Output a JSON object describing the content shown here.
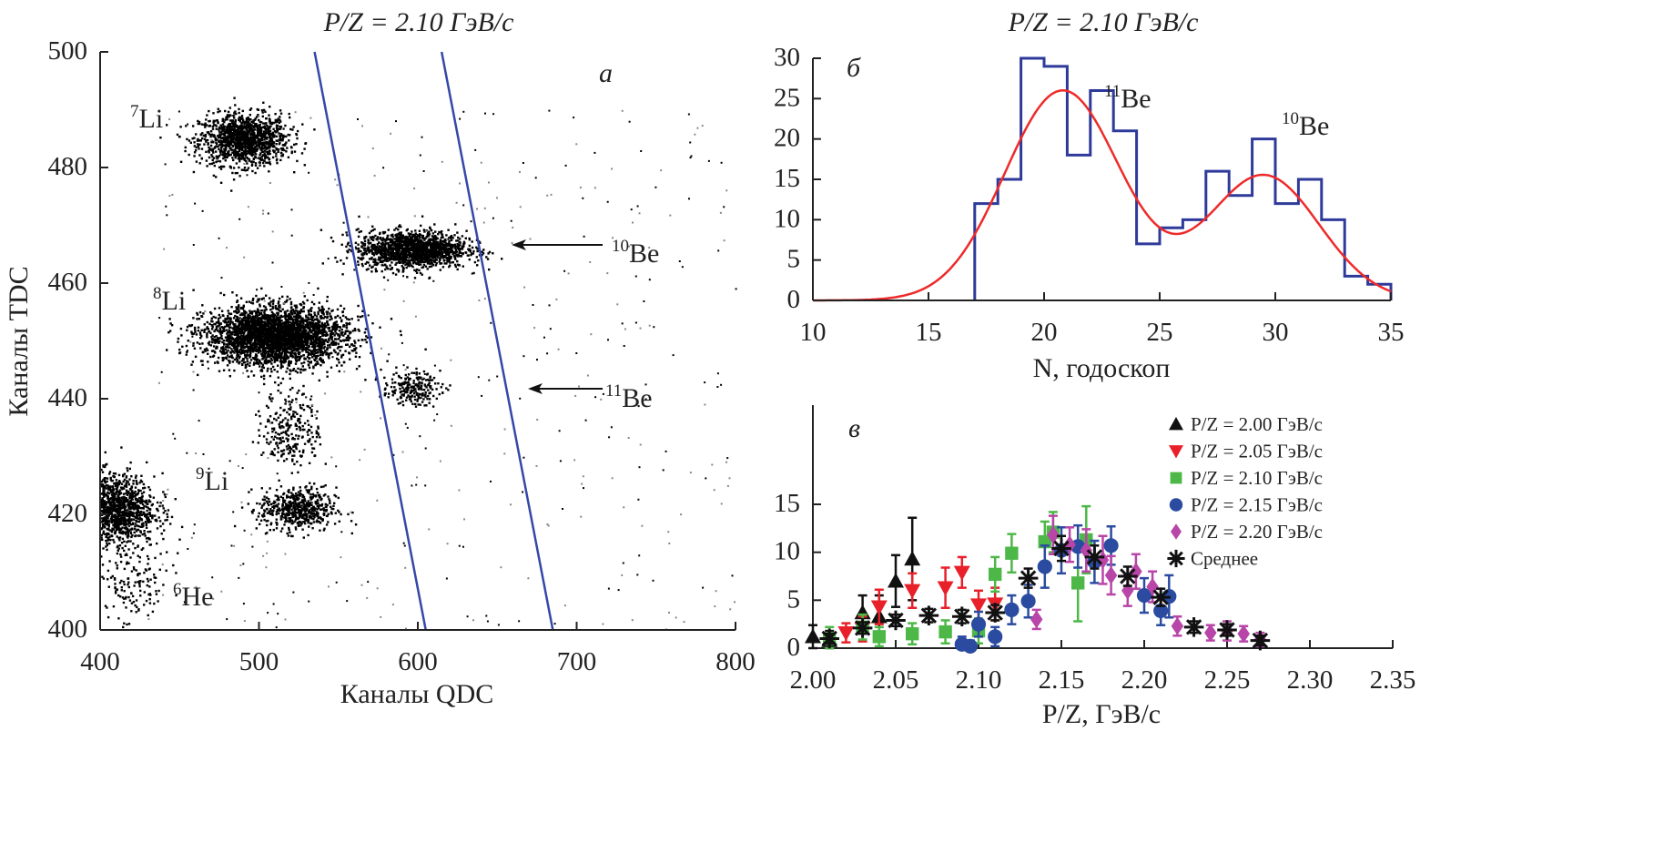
{
  "chart_data": [
    {
      "panel": "a",
      "type": "scatter",
      "title": "P/Z = 2.10 ГэВ/с",
      "xlabel": "Каналы QDC",
      "ylabel": "Каналы TDC",
      "xlim": [
        400,
        800
      ],
      "ylim": [
        400,
        500
      ],
      "xticks": [
        "400",
        "500",
        "600",
        "700",
        "800"
      ],
      "yticks": [
        "400",
        "420",
        "440",
        "460",
        "480",
        "500"
      ],
      "clusters": [
        {
          "isotope": "7Li",
          "x": 490,
          "y": 485,
          "sx": 14,
          "sy": 2.2,
          "n": 1300
        },
        {
          "isotope": "10Be",
          "x": 596,
          "y": 466,
          "sx": 17,
          "sy": 1.6,
          "n": 1500
        },
        {
          "isotope": "8Li",
          "x": 510,
          "y": 451,
          "sx": 22,
          "sy": 2.5,
          "n": 3200
        },
        {
          "isotope": "11Be",
          "x": 595,
          "y": 442,
          "sx": 9,
          "sy": 1.4,
          "n": 220
        },
        {
          "isotope": "",
          "x": 520,
          "y": 435,
          "sx": 9,
          "sy": 3.5,
          "n": 260
        },
        {
          "isotope": "9Li",
          "x": 524,
          "y": 421,
          "sx": 12,
          "sy": 1.9,
          "n": 550
        },
        {
          "isotope": "",
          "x": 408,
          "y": 421,
          "sx": 13,
          "sy": 3,
          "n": 1300
        },
        {
          "isotope": "6He",
          "x": 420,
          "y": 408,
          "sx": 12,
          "sy": 4,
          "n": 160
        }
      ],
      "cut_lines": [
        {
          "x1": 535,
          "y1": 500,
          "x2": 605,
          "y2": 400
        },
        {
          "x1": 615,
          "y1": 500,
          "x2": 685,
          "y2": 400
        }
      ],
      "line_color": "#3548a8",
      "panel_label": "а",
      "labels": [
        {
          "mass": "7",
          "symbol": "Li"
        },
        {
          "mass": "8",
          "symbol": "Li"
        },
        {
          "mass": "9",
          "symbol": "Li"
        },
        {
          "mass": "6",
          "symbol": "He"
        },
        {
          "mass": "10",
          "symbol": "Be"
        },
        {
          "mass": "11",
          "symbol": "Be"
        }
      ]
    },
    {
      "panel": "б",
      "type": "bar",
      "title": "P/Z = 2.10 ГэВ/с",
      "xlabel": "N, годоскоп",
      "xlim": [
        10,
        35
      ],
      "ylim": [
        0,
        30
      ],
      "xticks": [
        "10",
        "15",
        "20",
        "25",
        "30",
        "35"
      ],
      "yticks": [
        "0",
        "5",
        "10",
        "15",
        "20",
        "25",
        "30"
      ],
      "bin_edges_start": 17,
      "bin_width": 1,
      "counts": [
        12,
        15,
        30,
        29,
        18,
        26,
        21,
        7,
        9,
        10,
        16,
        13,
        20,
        12,
        15,
        10,
        3,
        2
      ],
      "fit": {
        "type": "double-gaussian",
        "peaks": [
          {
            "amp": 26,
            "mean": 20.8,
            "sigma": 2.5
          },
          {
            "amp": 15.5,
            "mean": 29.5,
            "sigma": 2.4
          }
        ]
      },
      "hist_color": "#2e3a9a",
      "fit_color": "#ee2a2a",
      "panel_label": "б",
      "labels": [
        {
          "mass": "11",
          "symbol": "Be"
        },
        {
          "mass": "10",
          "symbol": "Be"
        }
      ]
    },
    {
      "panel": "в",
      "type": "scatter",
      "xlabel": "P/Z, ГэВ/с",
      "xlim": [
        2.0,
        2.35
      ],
      "ylim": [
        0,
        16
      ],
      "xticks": [
        "2.00",
        "2.05",
        "2.10",
        "2.15",
        "2.20",
        "2.25",
        "2.30",
        "2.35"
      ],
      "yticks": [
        "0",
        "5",
        "10",
        "15"
      ],
      "panel_label": "в",
      "legend_position": "top-right",
      "series": [
        {
          "name": "P/Z = 2.00 ГэВ/с",
          "marker": "triangle-up",
          "color": "#111111",
          "x": [
            2.0,
            2.01,
            2.03,
            2.04,
            2.05,
            2.06
          ],
          "y": [
            1.2,
            0.8,
            3.7,
            3.3,
            7.0,
            9.3
          ],
          "err": [
            1.2,
            1.0,
            1.8,
            2.2,
            2.7,
            4.3
          ]
        },
        {
          "name": "P/Z = 2.05 ГэВ/с",
          "marker": "triangle-down",
          "color": "#e8202a",
          "x": [
            2.02,
            2.03,
            2.04,
            2.06,
            2.08,
            2.09,
            2.1,
            2.11
          ],
          "y": [
            1.6,
            2.0,
            4.3,
            6.0,
            6.3,
            7.9,
            4.5,
            4.6
          ],
          "err": [
            1.0,
            1.3,
            1.8,
            1.8,
            2.1,
            1.6,
            1.5,
            1.7
          ]
        },
        {
          "name": "P/Z = 2.10 ГэВ/с",
          "marker": "square",
          "color": "#4db848",
          "x": [
            2.01,
            2.03,
            2.04,
            2.06,
            2.08,
            2.1,
            2.11,
            2.12,
            2.14,
            2.145,
            2.16,
            2.165
          ],
          "y": [
            1.0,
            2.2,
            1.2,
            1.5,
            1.7,
            1.8,
            7.7,
            9.9,
            11.1,
            12.1,
            6.8,
            11.3
          ],
          "err": [
            1.2,
            1.3,
            1.0,
            1.1,
            1.2,
            1.3,
            1.8,
            2.0,
            2.1,
            2.1,
            4.0,
            3.5
          ]
        },
        {
          "name": "P/Z = 2.15 ГэВ/с",
          "marker": "circle",
          "color": "#2a4ba0",
          "x": [
            2.09,
            2.095,
            2.1,
            2.11,
            2.12,
            2.13,
            2.14,
            2.15,
            2.16,
            2.17,
            2.18,
            2.2,
            2.21,
            2.215
          ],
          "y": [
            0.4,
            0.2,
            2.5,
            1.2,
            4.0,
            4.9,
            8.5,
            10.2,
            10.6,
            9.0,
            10.7,
            5.5,
            3.9,
            5.4
          ],
          "err": [
            0.8,
            0.6,
            1.3,
            1.0,
            1.5,
            1.7,
            2.2,
            2.4,
            2.2,
            2.2,
            2.0,
            1.8,
            1.5,
            2.2
          ]
        },
        {
          "name": "P/Z = 2.20 ГэВ/с",
          "marker": "diamond",
          "color": "#b845a8",
          "x": [
            2.135,
            2.145,
            2.155,
            2.165,
            2.175,
            2.18,
            2.19,
            2.195,
            2.205,
            2.22,
            2.24,
            2.25,
            2.26,
            2.27
          ],
          "y": [
            3.0,
            11.8,
            10.8,
            10.2,
            9.2,
            7.6,
            6.0,
            8.0,
            6.4,
            2.3,
            1.6,
            1.8,
            1.5,
            0.9
          ],
          "err": [
            1.0,
            2.0,
            1.8,
            2.2,
            2.5,
            2.0,
            1.6,
            1.8,
            1.6,
            1.0,
            0.8,
            1.0,
            0.8,
            0.7
          ]
        },
        {
          "name": "Среднее",
          "marker": "asterisk",
          "color": "#111111",
          "x": [
            2.01,
            2.03,
            2.05,
            2.07,
            2.09,
            2.11,
            2.13,
            2.15,
            2.17,
            2.19,
            2.21,
            2.23,
            2.25,
            2.27
          ],
          "y": [
            1.0,
            2.1,
            2.9,
            3.4,
            3.3,
            3.7,
            7.3,
            10.4,
            9.5,
            7.5,
            5.3,
            2.2,
            1.9,
            0.8
          ],
          "err": [
            0.5,
            0.6,
            0.6,
            0.7,
            0.7,
            0.8,
            1.0,
            1.3,
            1.2,
            1.0,
            0.9,
            0.6,
            0.6,
            0.5
          ]
        }
      ]
    }
  ]
}
